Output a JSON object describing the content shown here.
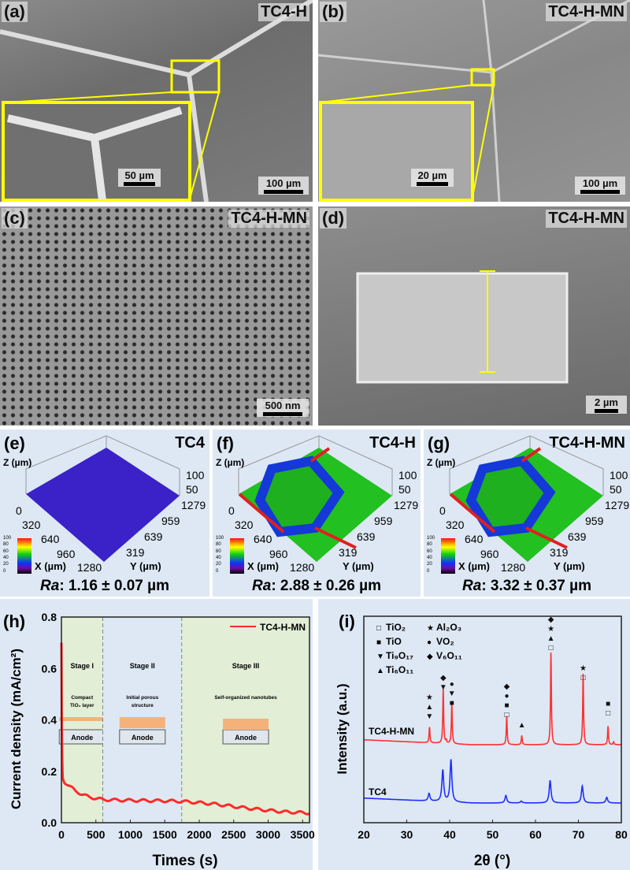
{
  "panels": {
    "a": {
      "label": "(a)",
      "sample": "TC4-H",
      "inset_scale": "50 µm",
      "scale": "100 µm"
    },
    "b": {
      "label": "(b)",
      "sample": "TC4-H-MN",
      "inset_scale": "20 µm",
      "scale": "100 µm"
    },
    "c": {
      "label": "(c)",
      "sample": "TC4-H-MN",
      "scale": "500 nm"
    },
    "d": {
      "label": "(d)",
      "sample": "TC4-H-MN",
      "scale": "2 µm"
    },
    "e": {
      "label": "(e)",
      "sample": "TC4",
      "ra": "Ra",
      "ra_value": ": 1.16 ± 0.07 µm"
    },
    "f": {
      "label": "(f)",
      "sample": "TC4-H",
      "ra": "Ra",
      "ra_value": ": 2.88 ± 0.26 µm"
    },
    "g": {
      "label": "(g)",
      "sample": "TC4-H-MN",
      "ra": "Ra",
      "ra_value": ": 3.32 ± 0.37 µm"
    },
    "surface_axes": {
      "z": "Z (µm)",
      "x": "X (µm)",
      "y": "Y (µm)",
      "z_ticks": [
        "100",
        "50"
      ],
      "x_ticks": [
        "0",
        "320",
        "640",
        "960",
        "1280"
      ],
      "y_ticks": [
        "1279",
        "959",
        "639",
        "319"
      ],
      "colorbar_ticks": [
        "100",
        "80",
        "60",
        "40",
        "20",
        "0"
      ]
    }
  },
  "chart_data": [
    {
      "panel": "(h)",
      "type": "line",
      "xlabel": "Times (s)",
      "ylabel": "Current density (mA/cm²)",
      "xlim": [
        0,
        3600
      ],
      "ylim": [
        0,
        0.8
      ],
      "xticks": [
        "0",
        "500",
        "1000",
        "1500",
        "2000",
        "2500",
        "3000",
        "3500"
      ],
      "yticks": [
        "0.0",
        "0.2",
        "0.4",
        "0.6",
        "0.8"
      ],
      "legend": "top-right",
      "series": [
        {
          "name": "TC4-H-MN",
          "color": "#ff2a2a",
          "x": [
            0,
            5,
            15,
            40,
            100,
            200,
            300,
            400,
            600,
            800,
            1000,
            1200,
            1500,
            1750,
            2000,
            2250,
            2500,
            2750,
            3000,
            3250,
            3600
          ],
          "y": [
            0.7,
            0.4,
            0.18,
            0.16,
            0.145,
            0.125,
            0.11,
            0.1,
            0.09,
            0.088,
            0.087,
            0.086,
            0.085,
            0.083,
            0.078,
            0.072,
            0.063,
            0.055,
            0.048,
            0.042,
            0.038
          ]
        }
      ],
      "stages": [
        {
          "name": "Stage I",
          "desc": "Compact",
          "desc2": "TiO₂ layer",
          "from": 0,
          "to": 600,
          "color": "#e2efd6"
        },
        {
          "name": "Stage II",
          "desc": "Initial porous",
          "desc2": "structure",
          "from": 600,
          "to": 1750,
          "color": "#dde8f4"
        },
        {
          "name": "Stage III",
          "desc": "Self-organized nanotubes",
          "desc2": "",
          "from": 1750,
          "to": 3600,
          "color": "#e2efd6"
        }
      ],
      "anode_label": "Anode"
    },
    {
      "panel": "(i)",
      "type": "line",
      "xlabel": "2θ (°)",
      "ylabel": "Intensity (a.u.)",
      "xlim": [
        20,
        80
      ],
      "xticks": [
        "20",
        "30",
        "40",
        "50",
        "60",
        "70",
        "80"
      ],
      "legend": [
        {
          "symbol": "□",
          "name": "TiO₂"
        },
        {
          "symbol": "■",
          "name": "TiO"
        },
        {
          "symbol": "▼",
          "name": "Ti₉O₁₇"
        },
        {
          "symbol": "▲",
          "name": "Ti₆O₁₁"
        },
        {
          "symbol": "★",
          "name": "Al₂O₃"
        },
        {
          "symbol": "●",
          "name": "VO₂"
        },
        {
          "symbol": "◆",
          "name": "V₆O₁₁"
        }
      ],
      "series": [
        {
          "name": "TC4-H-MN",
          "color": "#ff3030",
          "peaks_2theta": [
            35.3,
            38.5,
            39.2,
            40.5,
            53.3,
            56.8,
            63.6,
            71.1,
            76.9,
            78.2
          ],
          "peaks_rel": [
            0.17,
            0.6,
            0.03,
            0.44,
            0.31,
            0.1,
            1.0,
            0.77,
            0.2,
            0.03
          ],
          "annotations": [
            {
              "x": 35.3,
              "symbols": "▼▲★"
            },
            {
              "x": 38.5,
              "symbols": "▼◆"
            },
            {
              "x": 40.5,
              "symbols": "■▼●"
            },
            {
              "x": 53.3,
              "symbols": "□■●◆"
            },
            {
              "x": 56.8,
              "symbols": "▲"
            },
            {
              "x": 63.6,
              "symbols": "□▲★◆"
            },
            {
              "x": 71.1,
              "symbols": "□★"
            },
            {
              "x": 76.9,
              "symbols": "□■"
            }
          ]
        },
        {
          "name": "TC4",
          "color": "#1f2fff",
          "peaks_2theta": [
            35.2,
            38.4,
            40.3,
            53.1,
            56.7,
            63.4,
            70.9,
            76.6
          ],
          "peaks_rel": [
            0.12,
            0.5,
            0.67,
            0.12,
            0.03,
            0.36,
            0.27,
            0.09
          ]
        }
      ]
    }
  ]
}
